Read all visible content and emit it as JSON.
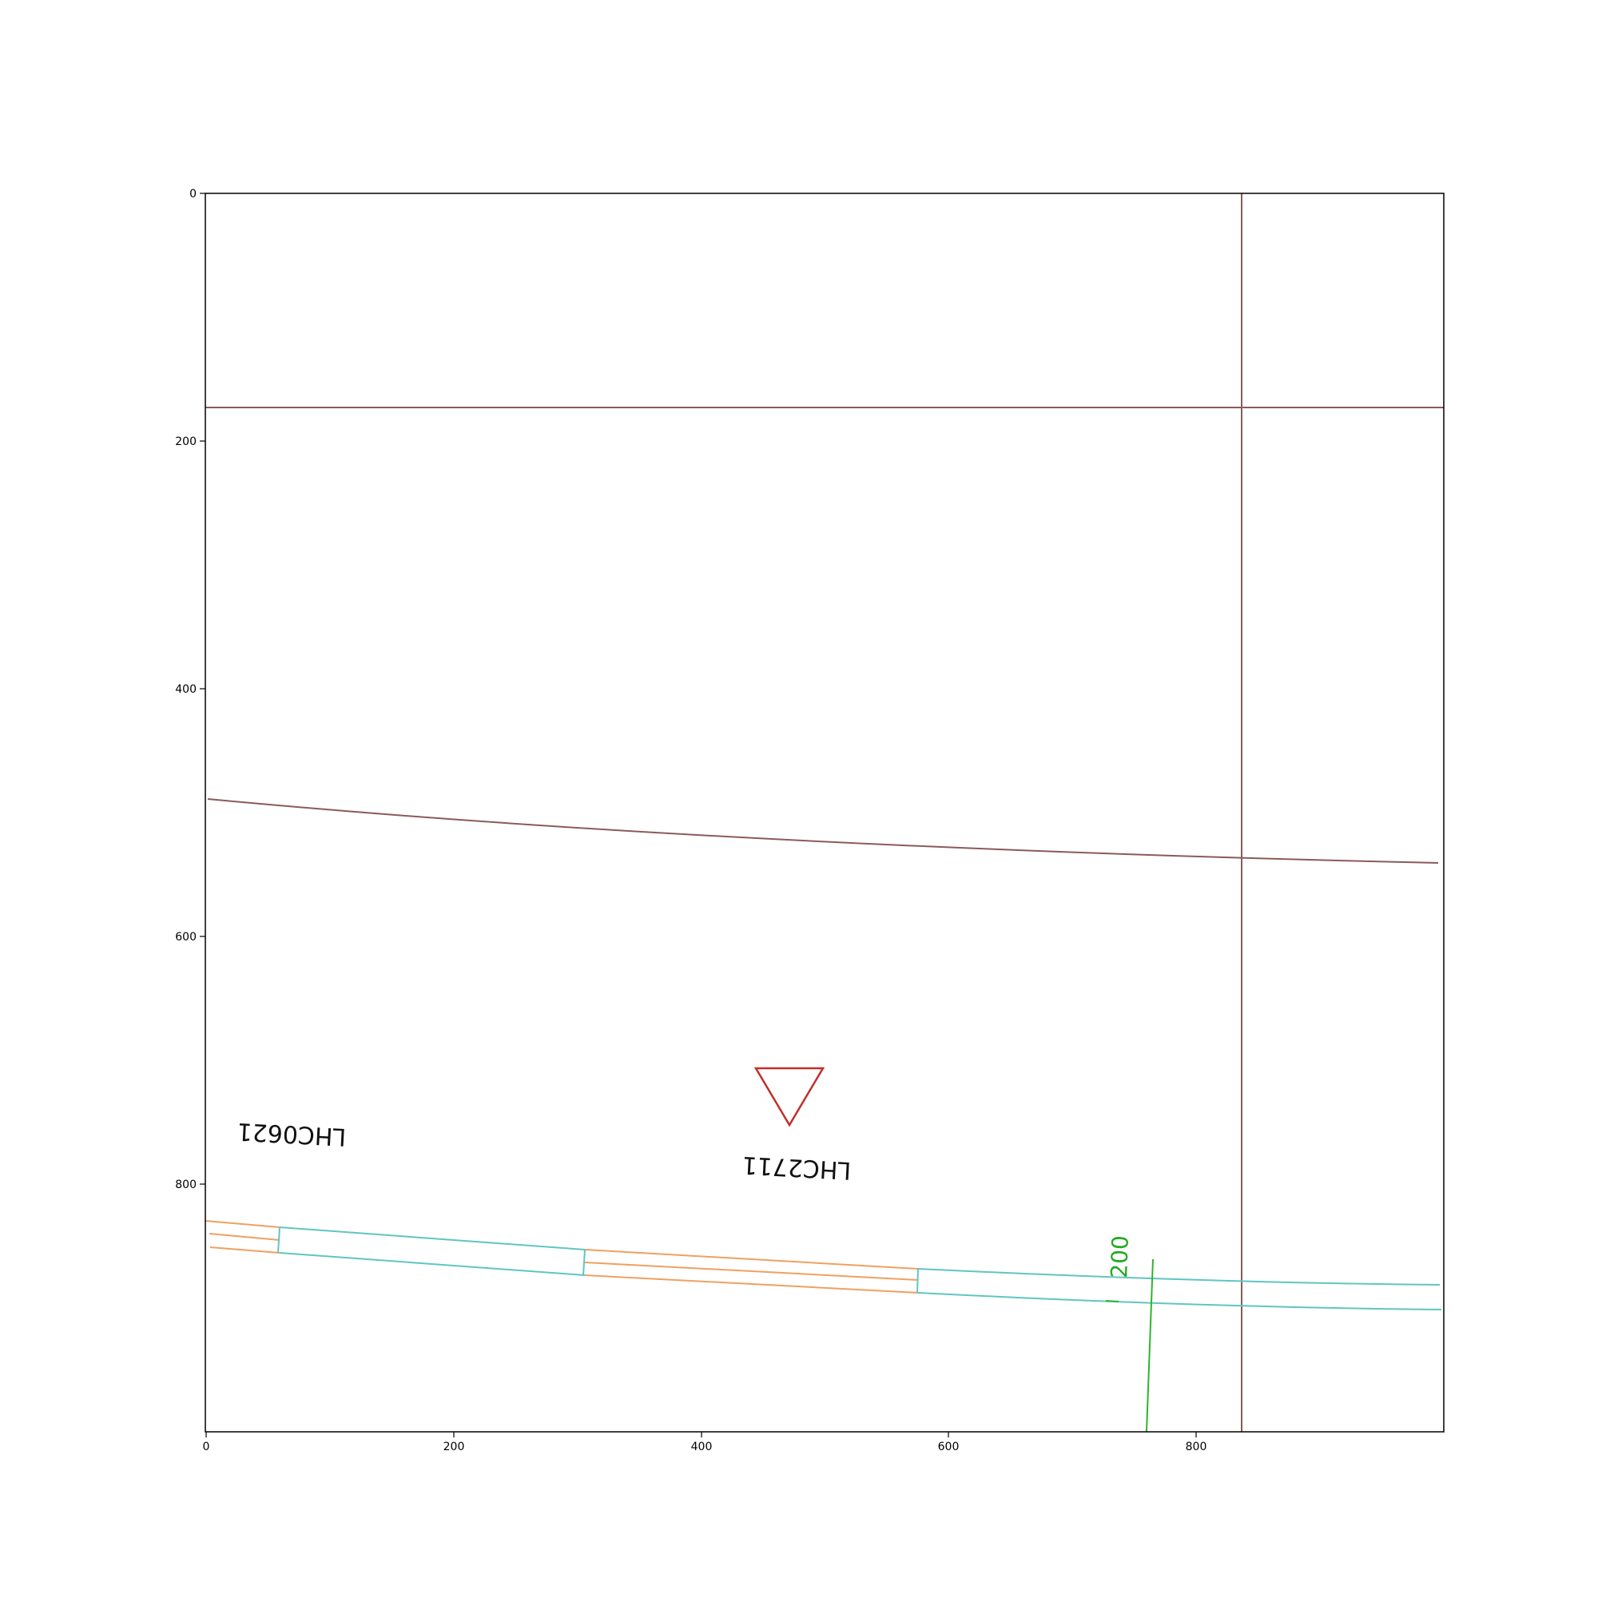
{
  "axes": {
    "x_ticks": [
      "0",
      "200",
      "400",
      "600",
      "800"
    ],
    "y_ticks": [
      "0",
      "200",
      "400",
      "600",
      "800"
    ],
    "xlim": [
      0,
      1000
    ],
    "ylim": [
      1000,
      0
    ],
    "y_inverted": true
  },
  "labels": {
    "station_a": "LHC0621",
    "station_b": "LHC2711",
    "contour": "200"
  },
  "colors": {
    "grid_lines": "#8b5a5a",
    "road_edge": "#f0a060",
    "road_segment": "#5fc6c0",
    "contour_line": "#2db52d",
    "contour_text": "#22aa22",
    "warning_marker": "#c0302a",
    "frame": "#000000"
  },
  "markers": {
    "warning_triangle": "inverted-triangle"
  }
}
